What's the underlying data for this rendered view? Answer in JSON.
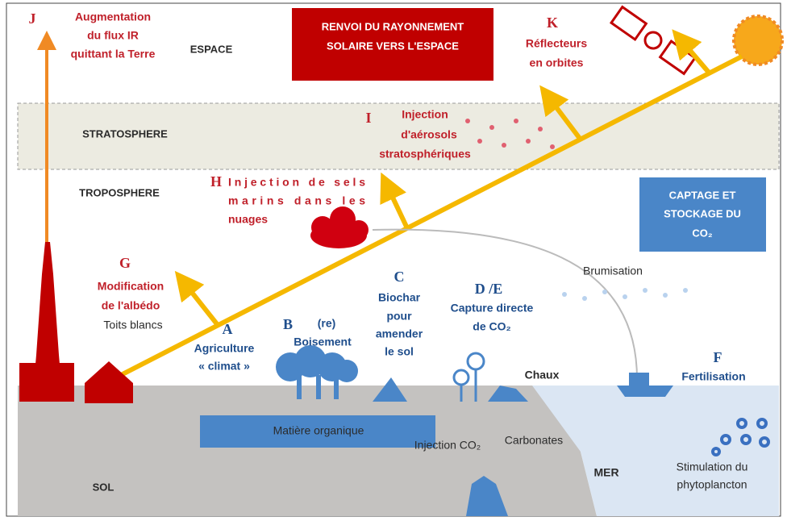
{
  "zones": {
    "space": "ESPACE",
    "stratosphere": "STRATOSPHERE",
    "troposphere": "TROPOSPHERE",
    "soil": "SOL",
    "sea": "MER"
  },
  "boxes": {
    "solar": [
      "RENVOI DU RAYONNEMENT",
      "SOLAIRE VERS L'ESPACE"
    ],
    "ccs": [
      "CAPTAGE ET",
      "STOCKAGE DU",
      "CO₂"
    ]
  },
  "techniques": {
    "J": {
      "letter": "J",
      "lines": [
        "Augmentation",
        "du flux IR",
        "quittant la Terre"
      ]
    },
    "K": {
      "letter": "K",
      "lines": [
        "Réflecteurs",
        "en orbites"
      ]
    },
    "I": {
      "letter": "I",
      "lines": [
        "Injection",
        "d'aérosols",
        "stratosphériques"
      ]
    },
    "H": {
      "letter": "H",
      "lines": [
        "Injection de sels",
        "marins dans les",
        "nuages"
      ]
    },
    "G": {
      "letter": "G",
      "lines": [
        "Modification",
        "de l'albédo"
      ],
      "note": "Toits blancs"
    },
    "A": {
      "letter": "A",
      "lines": [
        "Agriculture",
        "« climat »"
      ]
    },
    "B": {
      "letter": "B",
      "lines": [
        "(re)",
        "Boisement"
      ]
    },
    "C": {
      "letter": "C",
      "lines": [
        "Biochar",
        "pour",
        "amender",
        "le sol"
      ]
    },
    "DE": {
      "letter": "D /E",
      "lines": [
        "Capture directe",
        "de CO₂"
      ]
    },
    "F": {
      "letter": "F",
      "lines": [
        "Fertilisation"
      ]
    }
  },
  "labels": {
    "brumisation": "Brumisation",
    "chaux": "Chaux",
    "organic": "Matière organique",
    "injection": "Injection CO₂",
    "carbonates": "Carbonates",
    "plankton": [
      "Stimulation du",
      "phytoplancton"
    ]
  }
}
